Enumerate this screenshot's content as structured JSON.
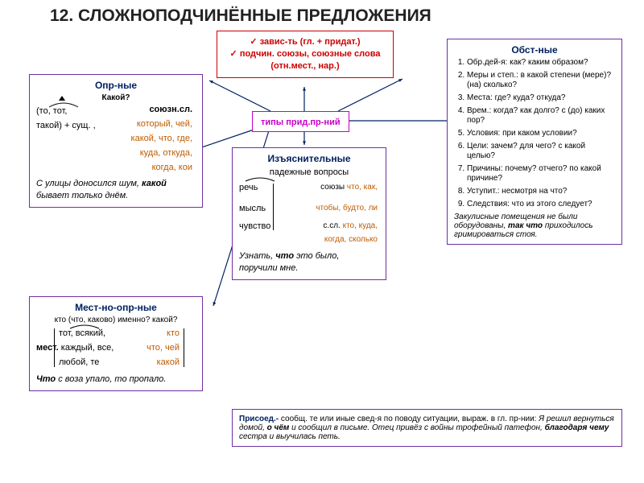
{
  "title": "12.    СЛОЖНОПОДЧИНЁННЫЕ ПРЕДЛОЖЕНИЯ",
  "colors": {
    "red": "#cc0000",
    "purple": "#7030a0",
    "blue": "#002060",
    "orange": "#bf5b00",
    "pink": "#c800c8",
    "black": "#000000"
  },
  "center_top": {
    "border": "#cc0000",
    "line1": "завис-ть (гл. + придат.)",
    "line2": "подчин. союзы, союзные слова (отн.мест., нар.)",
    "line1_color": "#cc0000",
    "line2_color": "#cc0000"
  },
  "types_box": {
    "border": "#c800c8",
    "label": "типы прид.пр-ний",
    "color": "#c800c8"
  },
  "opr": {
    "border": "#7030a0",
    "title": "Опр-ные",
    "title_color": "#002060",
    "q": "Какой?",
    "left1": "(то, тот,",
    "left2": "такой)   + сущ.  ,",
    "r_label": "союзн.сл.",
    "r1": "который, чей,",
    "r2": "какой, что, где,",
    "r3": "куда, откуда,",
    "r4": "когда, кои",
    "r_color": "#bf5b00",
    "example_i": "С улицы доносился шум, ",
    "example_b": "какой",
    "example_i2": " бывает только днём."
  },
  "mest": {
    "border": "#7030a0",
    "title": "Мест-но-опр-ные",
    "title_color": "#002060",
    "q": "кто (что, каково) именно? какой?",
    "l1": "тот, всякий,",
    "l2_lead": "мест.",
    "l2": "  каждый, все,",
    "l3": "любой, те",
    "r1": "кто",
    "r2": "что, чей",
    "r3": "какой",
    "r_color": "#bf5b00",
    "ex_b": "Что",
    "ex_i": " с воза упало, то пропало."
  },
  "izjas": {
    "border": "#7030a0",
    "title": "Изъяснительные",
    "title_color": "#002060",
    "sub": "падежные вопросы",
    "row1_l": "речь",
    "row1_r_lead": "союзы ",
    "row1_r": "что, как,",
    "row2_l": "мысль",
    "row2_r": "чтобы, будто, ли",
    "row3_l": "чувство",
    "row3_r_lead": "с.сл. ",
    "row3_r": "кто, куда,",
    "row4_r": "когда, сколько",
    "r_color": "#bf5b00",
    "ex1": "Узнать, ",
    "ex_b": "что",
    "ex2": " это было, поручили мне."
  },
  "obst": {
    "border": "#7030a0",
    "title": "Обст-ные",
    "title_color": "#002060",
    "items": [
      "Обр.дей-я: как? каким образом?",
      "Меры и степ.: в какой степени (мере)? (на) сколько?",
      "Места: где? куда? откуда?",
      "Врем.: когда? как долго? с (до) каких пор?",
      "Условия: при каком условии?",
      "Цели: зачем? для чего? с какой целью?",
      "Причины: почему? отчего? по какой причине?",
      "Уступит.: несмотря на что?",
      "Следствия: что из этого следует?"
    ],
    "ex_i1": "Закулисные помещения не были оборудованы, ",
    "ex_b": "так что",
    "ex_i2": " приходилось гримироваться стоя."
  },
  "prisoed": {
    "border": "#7030a0",
    "lead": "Присоед.- ",
    "text1": "сообщ. те или иные свед-я по поводу ситуации, выраж. в гл. пр-нии: ",
    "ex1_i": "Я решил вернуться домой, ",
    "ex1_b": "о чём",
    "ex1_i2": " и сообщил в письме. Отец привёз с войны трофейный патефон, ",
    "ex2_b": "благодаря чему",
    "ex2_i": " сестра и выучилась петь."
  },
  "lines": {
    "color": "#002060",
    "paths": [
      "M 336 138 L 260 100",
      "M 378 138 L 378 108",
      "M 420 138 L 500 98",
      "M 330 156 L 230 190",
      "M 336 156 L 265 380",
      "M 378 160 L 378 180",
      "M 420 150 L 560 150"
    ]
  }
}
